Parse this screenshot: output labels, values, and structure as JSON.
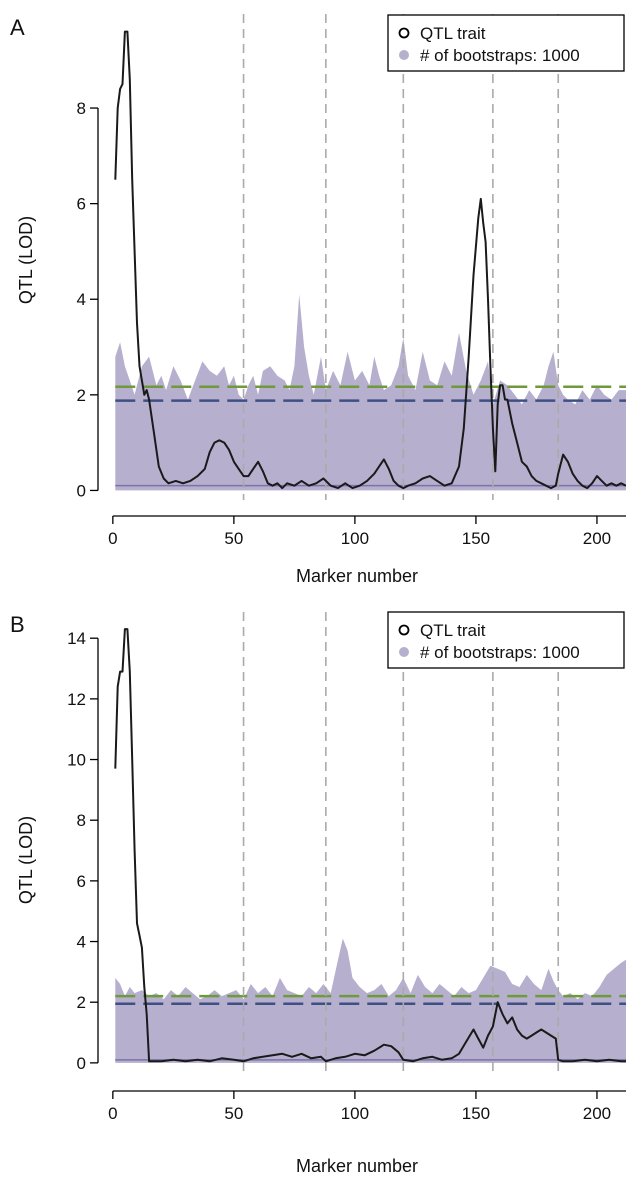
{
  "colors": {
    "trait_line": "#1a1a1a",
    "bootstrap_fill": "#b6afce",
    "bootstrap_median": "#7b72a8",
    "threshold_green": "#6f9a3c",
    "threshold_blue": "#3f4f84",
    "chromosome_boundary": "#aaaaaa"
  },
  "chart_data": [
    {
      "panel_label": "A",
      "type": "line",
      "xlabel": "Marker number",
      "ylabel": "QTL (LOD)",
      "xlim": [
        -2,
        212
      ],
      "ylim": [
        -0.2,
        9.8
      ],
      "xticks": [
        0,
        50,
        100,
        150,
        200
      ],
      "yticks": [
        0,
        2,
        4,
        6,
        8
      ],
      "legend": {
        "position": "top-right",
        "entries": [
          "QTL trait",
          "# of bootstraps: 1000"
        ]
      },
      "chromosome_boundaries": [
        54,
        88,
        120,
        157,
        184
      ],
      "thresholds": [
        {
          "color_key": "threshold_green",
          "value": 2.17
        },
        {
          "color_key": "threshold_blue",
          "value": 1.88
        }
      ],
      "bootstrap_median": 0.1,
      "bootstrap_upper": {
        "x": [
          1,
          3,
          5,
          7,
          9,
          12,
          15,
          18,
          20,
          22,
          25,
          28,
          31,
          34,
          37,
          40,
          43,
          46,
          48,
          50,
          52,
          54,
          56,
          58,
          60,
          62,
          65,
          68,
          71,
          73,
          75,
          77,
          79,
          81,
          83,
          86,
          88,
          91,
          94,
          97,
          100,
          103,
          106,
          108,
          110,
          112,
          115,
          118,
          120,
          122,
          125,
          128,
          131,
          134,
          137,
          140,
          143,
          146,
          149,
          152,
          155,
          157,
          160,
          163,
          166,
          169,
          172,
          175,
          178,
          180,
          182,
          184,
          186,
          188,
          191,
          194,
          197,
          200,
          203,
          206,
          209,
          212
        ],
        "y": [
          2.8,
          3.1,
          2.6,
          2.3,
          2.0,
          2.6,
          2.8,
          2.2,
          2.4,
          2.1,
          2.6,
          2.3,
          1.9,
          2.3,
          2.7,
          2.5,
          2.4,
          2.6,
          2.2,
          2.4,
          2.0,
          1.9,
          2.2,
          2.4,
          2.0,
          2.5,
          2.6,
          2.4,
          2.3,
          2.1,
          2.6,
          4.1,
          3.0,
          2.4,
          2.0,
          2.8,
          2.1,
          2.5,
          2.2,
          2.9,
          2.3,
          2.5,
          2.2,
          2.8,
          2.4,
          2.1,
          2.2,
          2.6,
          3.2,
          2.4,
          2.1,
          2.9,
          2.3,
          2.2,
          2.7,
          2.4,
          3.3,
          2.5,
          2.0,
          2.3,
          2.7,
          1.8,
          2.3,
          2.2,
          2.0,
          1.8,
          2.1,
          1.9,
          2.2,
          2.6,
          2.9,
          2.2,
          2.0,
          1.9,
          1.8,
          2.1,
          1.9,
          2.2,
          2.0,
          1.9,
          2.1,
          2.1
        ]
      },
      "series": [
        {
          "name": "QTL trait",
          "x": [
            1,
            2,
            3,
            4,
            5,
            6,
            7,
            8,
            9,
            10,
            11,
            12,
            13,
            14,
            15,
            17,
            19,
            21,
            23,
            26,
            29,
            32,
            35,
            38,
            40,
            42,
            44,
            46,
            48,
            50,
            52,
            54,
            56,
            58,
            60,
            62,
            64,
            66,
            68,
            70,
            72,
            75,
            78,
            81,
            84,
            87,
            90,
            93,
            96,
            99,
            102,
            105,
            108,
            110,
            112,
            114,
            116,
            118,
            120,
            122,
            125,
            128,
            131,
            134,
            137,
            140,
            143,
            145,
            147,
            149,
            151,
            152,
            153,
            154,
            155,
            156,
            157,
            158,
            159,
            160,
            161,
            162,
            163,
            165,
            167,
            169,
            171,
            173,
            175,
            177,
            179,
            181,
            183,
            184,
            186,
            188,
            190,
            192,
            194,
            196,
            198,
            200,
            202,
            204,
            206,
            208,
            210,
            212
          ],
          "y": [
            6.5,
            8.0,
            8.4,
            8.5,
            9.6,
            9.6,
            8.6,
            6.5,
            5.0,
            3.5,
            2.6,
            2.3,
            2.0,
            2.1,
            1.9,
            1.2,
            0.5,
            0.25,
            0.15,
            0.2,
            0.15,
            0.2,
            0.3,
            0.45,
            0.8,
            1.0,
            1.05,
            1.0,
            0.85,
            0.6,
            0.45,
            0.3,
            0.3,
            0.45,
            0.6,
            0.4,
            0.15,
            0.1,
            0.15,
            0.05,
            0.15,
            0.1,
            0.2,
            0.1,
            0.15,
            0.25,
            0.1,
            0.05,
            0.15,
            0.05,
            0.1,
            0.2,
            0.35,
            0.5,
            0.65,
            0.45,
            0.2,
            0.1,
            0.05,
            0.1,
            0.15,
            0.25,
            0.3,
            0.2,
            0.1,
            0.15,
            0.5,
            1.3,
            2.8,
            4.5,
            5.7,
            6.1,
            5.6,
            5.2,
            4.0,
            2.6,
            1.3,
            0.4,
            1.8,
            2.2,
            2.2,
            1.9,
            1.9,
            1.4,
            1.0,
            0.6,
            0.5,
            0.3,
            0.2,
            0.15,
            0.1,
            0.05,
            0.1,
            0.35,
            0.75,
            0.6,
            0.35,
            0.2,
            0.1,
            0.05,
            0.15,
            0.3,
            0.2,
            0.1,
            0.15,
            0.1,
            0.15,
            0.1
          ]
        }
      ]
    },
    {
      "panel_label": "B",
      "type": "line",
      "xlabel": "Marker number",
      "ylabel": "QTL (LOD)",
      "xlim": [
        -2,
        212
      ],
      "ylim": [
        -0.4,
        14.6
      ],
      "xticks": [
        0,
        50,
        100,
        150,
        200
      ],
      "yticks": [
        0,
        2,
        4,
        6,
        8,
        10,
        12,
        14
      ],
      "legend": {
        "position": "top-right",
        "entries": [
          "QTL trait",
          "# of bootstraps: 1000"
        ]
      },
      "chromosome_boundaries": [
        54,
        88,
        120,
        157,
        184
      ],
      "thresholds": [
        {
          "color_key": "threshold_green",
          "value": 2.2
        },
        {
          "color_key": "threshold_blue",
          "value": 1.95
        }
      ],
      "bootstrap_median": 0.1,
      "bootstrap_upper": {
        "x": [
          1,
          3,
          5,
          7,
          9,
          12,
          15,
          18,
          21,
          24,
          27,
          30,
          33,
          36,
          39,
          42,
          45,
          48,
          51,
          54,
          57,
          60,
          63,
          66,
          69,
          72,
          75,
          78,
          81,
          84,
          87,
          90,
          93,
          95,
          97,
          99,
          102,
          105,
          108,
          111,
          114,
          117,
          120,
          123,
          126,
          129,
          132,
          135,
          138,
          141,
          144,
          147,
          150,
          153,
          156,
          159,
          162,
          165,
          168,
          171,
          174,
          177,
          180,
          182,
          184,
          186,
          189,
          192,
          195,
          198,
          201,
          204,
          207,
          210,
          212
        ],
        "y": [
          2.8,
          2.6,
          2.2,
          2.5,
          2.3,
          2.4,
          2.2,
          2.3,
          2.1,
          2.4,
          2.2,
          2.5,
          2.3,
          2.1,
          2.2,
          2.4,
          2.2,
          2.3,
          2.4,
          2.1,
          2.6,
          2.3,
          2.5,
          2.2,
          2.8,
          2.4,
          2.3,
          2.2,
          2.5,
          2.3,
          2.6,
          2.3,
          3.4,
          4.1,
          3.7,
          2.8,
          2.5,
          2.3,
          2.4,
          2.6,
          2.2,
          2.4,
          2.8,
          2.3,
          2.9,
          2.5,
          2.3,
          2.6,
          2.4,
          2.2,
          2.5,
          2.3,
          2.4,
          2.8,
          3.2,
          3.1,
          3.0,
          2.6,
          2.5,
          2.9,
          2.6,
          2.4,
          3.1,
          2.7,
          2.4,
          2.2,
          2.3,
          2.1,
          2.3,
          2.2,
          2.5,
          2.9,
          3.1,
          3.3,
          3.4
        ]
      },
      "series": [
        {
          "name": "QTL trait",
          "x": [
            1,
            2,
            3,
            4,
            5,
            6,
            7,
            8,
            9,
            10,
            11,
            12,
            13,
            14,
            15,
            17,
            20,
            25,
            30,
            35,
            40,
            45,
            50,
            54,
            58,
            62,
            66,
            70,
            74,
            78,
            82,
            86,
            88,
            92,
            96,
            100,
            104,
            108,
            112,
            115,
            118,
            120,
            124,
            128,
            132,
            136,
            140,
            143,
            146,
            149,
            151,
            153,
            155,
            157,
            159,
            160,
            161,
            163,
            165,
            167,
            169,
            171,
            173,
            175,
            177,
            179,
            181,
            183,
            184,
            186,
            190,
            195,
            200,
            205,
            210,
            212
          ],
          "y": [
            9.7,
            12.4,
            12.9,
            12.9,
            14.3,
            14.3,
            12.9,
            10.0,
            7.0,
            4.6,
            4.2,
            3.8,
            2.5,
            1.6,
            0.05,
            0.05,
            0.05,
            0.1,
            0.05,
            0.1,
            0.05,
            0.15,
            0.1,
            0.05,
            0.15,
            0.2,
            0.25,
            0.3,
            0.2,
            0.3,
            0.15,
            0.2,
            0.05,
            0.15,
            0.2,
            0.3,
            0.25,
            0.4,
            0.6,
            0.55,
            0.35,
            0.1,
            0.05,
            0.15,
            0.2,
            0.1,
            0.15,
            0.3,
            0.7,
            1.1,
            0.8,
            0.5,
            0.9,
            1.2,
            2.0,
            1.8,
            1.6,
            1.3,
            1.5,
            1.1,
            0.9,
            0.8,
            0.9,
            1.0,
            1.1,
            1.0,
            0.9,
            0.8,
            0.1,
            0.05,
            0.05,
            0.1,
            0.05,
            0.1,
            0.05,
            0.05
          ]
        }
      ]
    }
  ]
}
